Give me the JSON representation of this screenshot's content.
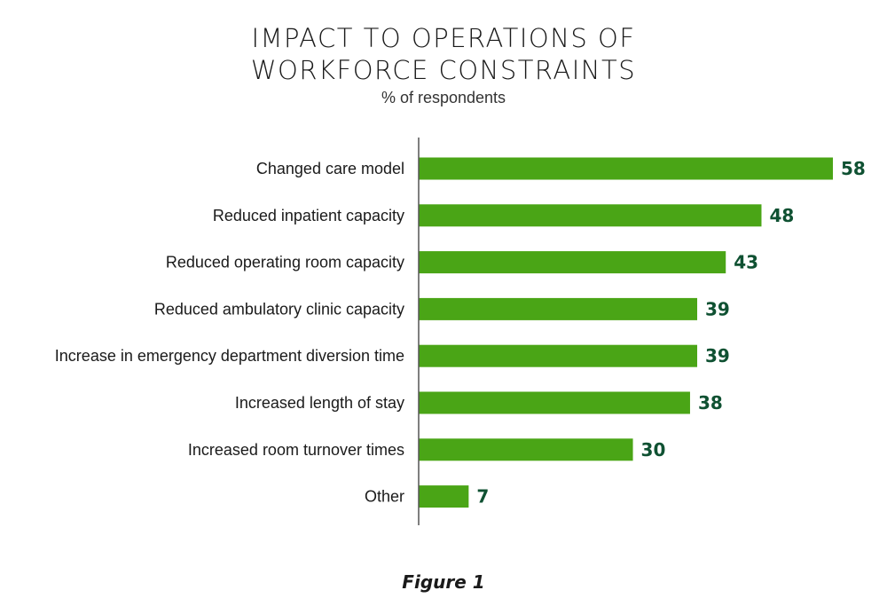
{
  "header": {
    "title_line1": "IMPACT TO OPERATIONS OF",
    "title_line2": "WORKFORCE CONSTRAINTS",
    "subtitle": "% of respondents"
  },
  "caption": "Figure 1",
  "colors": {
    "bar": "#4aa516",
    "value_text": "#0f5132",
    "axis": "#555555"
  },
  "chart_data": {
    "type": "bar",
    "orientation": "horizontal",
    "title": "IMPACT TO OPERATIONS OF WORKFORCE CONSTRAINTS",
    "subtitle": "% of respondents",
    "xlabel": "",
    "ylabel": "",
    "xlim": [
      0,
      58
    ],
    "grid": false,
    "categories": [
      "Changed care model",
      "Reduced inpatient capacity",
      "Reduced operating room capacity",
      "Reduced ambulatory clinic capacity",
      "Increase in emergency department diversion time",
      "Increased length of stay",
      "Increased room turnover times",
      "Other"
    ],
    "values": [
      58,
      48,
      43,
      39,
      39,
      38,
      30,
      7
    ],
    "data_labels": [
      "58",
      "48",
      "43",
      "39",
      "39",
      "38",
      "30",
      "7"
    ]
  }
}
